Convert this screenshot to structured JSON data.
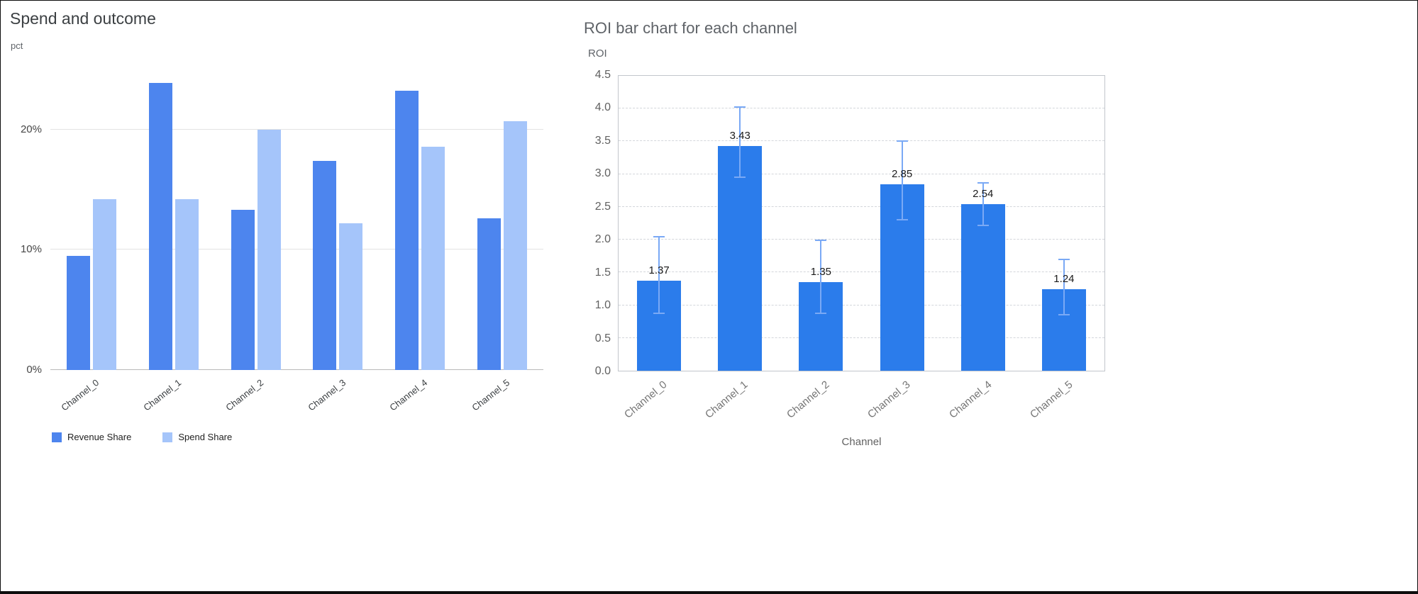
{
  "page": {
    "background": "#ffffff",
    "frame_border_color": "#000000"
  },
  "chart_data": [
    {
      "type": "bar",
      "title": "Spend and outcome",
      "xlabel": "",
      "ylabel": "pct",
      "categories": [
        "Channel_0",
        "Channel_1",
        "Channel_2",
        "Channel_3",
        "Channel_4",
        "Channel_5"
      ],
      "series": [
        {
          "name": "Revenue Share",
          "color": "#4d85ee",
          "values": [
            9.5,
            23.9,
            13.3,
            17.4,
            23.2,
            12.6
          ]
        },
        {
          "name": "Spend Share",
          "color": "#a5c5fa",
          "values": [
            14.2,
            14.2,
            20.0,
            12.2,
            18.6,
            20.7
          ]
        }
      ],
      "ylim": [
        0,
        25.35
      ],
      "yticks": [
        {
          "value": 0,
          "label": "0%"
        },
        {
          "value": 10,
          "label": "10%"
        },
        {
          "value": 20,
          "label": "20%"
        }
      ],
      "grid": "solid",
      "legend_position": "bottom"
    },
    {
      "type": "bar",
      "title": "ROI bar chart for each channel",
      "xlabel": "Channel",
      "ylabel": "ROI",
      "categories": [
        "Channel_0",
        "Channel_1",
        "Channel_2",
        "Channel_3",
        "Channel_4",
        "Channel_5"
      ],
      "values": [
        1.37,
        3.43,
        1.35,
        2.85,
        2.54,
        1.24
      ],
      "value_labels": [
        "1.37",
        "3.43",
        "1.35",
        "2.85",
        "2.54",
        "1.24"
      ],
      "error_low": [
        0.88,
        2.95,
        0.88,
        2.3,
        2.22,
        0.85
      ],
      "error_high": [
        2.04,
        4.02,
        1.99,
        3.51,
        2.87,
        1.7
      ],
      "bar_color": "#2b7ceb",
      "error_color": "#7aa9f5",
      "ylim": [
        0,
        4.5
      ],
      "yticks": [
        {
          "value": 0,
          "label": "0.0"
        },
        {
          "value": 0.5,
          "label": "0.5"
        },
        {
          "value": 1,
          "label": "1.0"
        },
        {
          "value": 1.5,
          "label": "1.5"
        },
        {
          "value": 2,
          "label": "2.0"
        },
        {
          "value": 2.5,
          "label": "2.5"
        },
        {
          "value": 3,
          "label": "3.0"
        },
        {
          "value": 3.5,
          "label": "3.5"
        },
        {
          "value": 4,
          "label": "4.0"
        },
        {
          "value": 4.5,
          "label": "4.5"
        }
      ],
      "grid": "dashed",
      "legend_position": "none"
    }
  ]
}
